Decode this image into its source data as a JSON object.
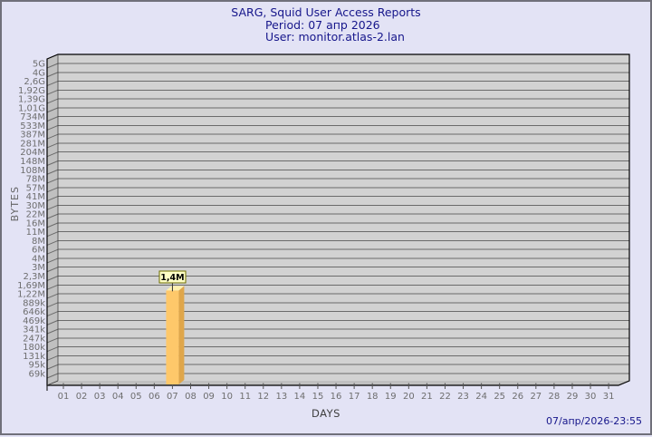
{
  "window": {
    "background": "#e3e3f5",
    "border_color": "#70707a",
    "title_color": "#16168b",
    "footer_color": "#16168b"
  },
  "footer": {
    "timestamp": "07/апр/2026-23:55"
  },
  "chart_data": {
    "type": "bar",
    "title": "SARG, Squid User Access Reports",
    "subtitle": "Period: 07 апр 2026",
    "user_line": "User: monitor.atlas-2.lan",
    "xlabel": "DAYS",
    "ylabel": "BYTES",
    "x_tick_labels": [
      "01",
      "02",
      "03",
      "04",
      "05",
      "06",
      "07",
      "08",
      "09",
      "10",
      "11",
      "12",
      "13",
      "14",
      "15",
      "16",
      "17",
      "18",
      "19",
      "20",
      "21",
      "22",
      "23",
      "24",
      "25",
      "26",
      "27",
      "28",
      "29",
      "30",
      "31"
    ],
    "y_tick_labels": [
      "5G",
      "4G",
      "2,6G",
      "1,92G",
      "1,39G",
      "1,01G",
      "734M",
      "533M",
      "387M",
      "281M",
      "204M",
      "148M",
      "108M",
      "78M",
      "57M",
      "41M",
      "30M",
      "22M",
      "16M",
      "11M",
      "8M",
      "6M",
      "4M",
      "3M",
      "2,3M",
      "1,69M",
      "1,22M",
      "889k",
      "646k",
      "469k",
      "341k",
      "247k",
      "180k",
      "131k",
      "95k",
      "69k"
    ],
    "y_axis_scale": "quasi-logarithmic tick ladder",
    "grid": true,
    "bars": [
      {
        "x": "07",
        "value_label": "1,4M",
        "value_bytes": 1400000
      }
    ],
    "colors": {
      "plot_bg": "#d2d2d2",
      "wall": "#c0c0c0",
      "grid": "#6b6b6b",
      "outline": "#000000",
      "bar_front": "#fec86a",
      "bar_side": "#dfa64a",
      "bar_top": "#fff2b0",
      "value_box_bg": "#ffffc6",
      "value_box_border": "#6e6e00",
      "tick_text": "#6e6e6e"
    }
  }
}
